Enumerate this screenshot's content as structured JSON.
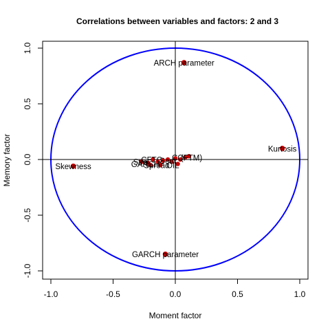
{
  "chart_data": {
    "type": "scatter",
    "title": "Correlations between variables and factors: 2 and 3",
    "xlabel": "Moment factor",
    "ylabel": "Memory factor",
    "xlim": [
      -1.05,
      1.05
    ],
    "ylim": [
      -1.05,
      1.05
    ],
    "x_ticks": [
      -1.0,
      -0.5,
      0.0,
      0.5,
      1.0
    ],
    "y_ticks": [
      -1.0,
      -0.5,
      0.0,
      0.5,
      1.0
    ],
    "x_tick_labels": [
      "-1.0",
      "-0.5",
      "0.0",
      "0.5",
      "1.0"
    ],
    "y_tick_labels": [
      "-1.0",
      "-0.5",
      "0.0",
      "0.5",
      "1.0"
    ],
    "unit_circle": true,
    "crosshair_at_origin": true,
    "grid": false,
    "colors": {
      "circle": "#0000ff",
      "points": "#cc0000",
      "axes": "#000000"
    },
    "labeled_points": [
      {
        "label": "ARCH parameter",
        "x": 0.07,
        "y": 0.87
      },
      {
        "label": "Kurtosis",
        "x": 0.86,
        "y": 0.1
      },
      {
        "label": "Skewness",
        "x": -0.82,
        "y": -0.06
      },
      {
        "label": "GARCH parameter",
        "x": -0.08,
        "y": -0.85
      }
    ],
    "cluster_points": [
      {
        "x": -0.27,
        "y": -0.02
      },
      {
        "x": -0.22,
        "y": -0.03
      },
      {
        "x": -0.18,
        "y": 0.0
      },
      {
        "x": -0.14,
        "y": -0.02
      },
      {
        "x": -0.1,
        "y": -0.01
      },
      {
        "x": -0.06,
        "y": 0.0
      },
      {
        "x": -0.03,
        "y": -0.02
      },
      {
        "x": 0.0,
        "y": 0.01
      },
      {
        "x": 0.04,
        "y": 0.0
      },
      {
        "x": 0.08,
        "y": 0.02
      },
      {
        "x": 0.11,
        "y": 0.03
      },
      {
        "x": -0.2,
        "y": -0.05
      },
      {
        "x": -0.12,
        "y": -0.05
      },
      {
        "x": 0.02,
        "y": -0.04
      }
    ],
    "cluster_labels": [
      {
        "label": "Stra",
        "x": -0.28,
        "y": -0.02
      },
      {
        "label": "CFTC",
        "x": -0.19,
        "y": 0.0
      },
      {
        "label": "GARCH",
        "x": -0.24,
        "y": -0.04
      },
      {
        "label": "Spread",
        "x": -0.15,
        "y": -0.05
      },
      {
        "label": "Sent",
        "x": -0.06,
        "y": -0.01
      },
      {
        "label": "OIL",
        "x": -0.02,
        "y": -0.05
      },
      {
        "label": "CO",
        "x": 0.02,
        "y": 0.02
      },
      {
        "label": "(FTM)",
        "x": 0.13,
        "y": 0.02
      }
    ]
  }
}
